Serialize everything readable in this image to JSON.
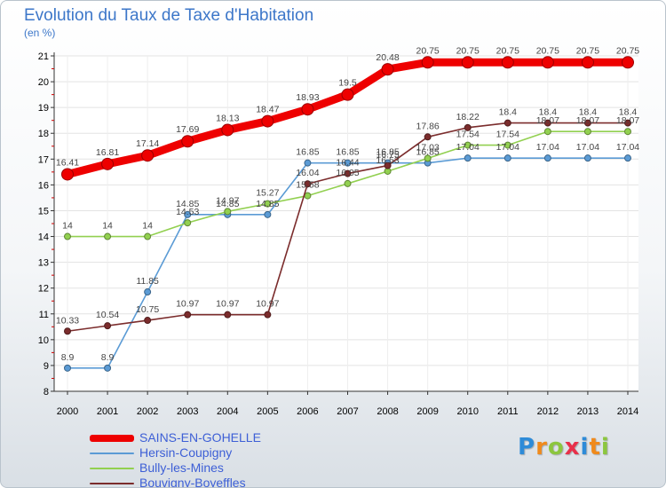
{
  "chart_data": {
    "type": "line",
    "title": "Evolution du Taux de Taxe d'Habitation",
    "unit_label": "(en %)",
    "x": [
      "2000",
      "2001",
      "2002",
      "2003",
      "2004",
      "2005",
      "2006",
      "2007",
      "2008",
      "2009",
      "2010",
      "2011",
      "2012",
      "2013",
      "2014"
    ],
    "ylim": [
      8,
      21
    ],
    "yticks": [
      8,
      9,
      10,
      11,
      12,
      13,
      14,
      15,
      16,
      17,
      18,
      19,
      20,
      21
    ],
    "grid": true,
    "legend_position": "bottom-left",
    "series": [
      {
        "name": "SAINS-EN-GOHELLE",
        "color": "#ee0000",
        "emphasis": true,
        "values": [
          16.41,
          16.81,
          17.14,
          17.69,
          18.13,
          18.47,
          18.93,
          19.5,
          20.48,
          20.75,
          20.75,
          20.75,
          20.75,
          20.75,
          20.75
        ],
        "labels": [
          "16.41",
          "16.81",
          "17.14",
          "17.69",
          "18.13",
          "18.47",
          "18.93",
          "19.5",
          "20.48",
          "20.75",
          "20.75",
          "20.75",
          "20.75",
          "20.75",
          "20.75"
        ]
      },
      {
        "name": "Hersin-Coupigny",
        "color": "#5b9bd5",
        "emphasis": false,
        "values": [
          8.9,
          8.9,
          11.85,
          14.85,
          14.85,
          14.85,
          16.85,
          16.85,
          16.85,
          16.85,
          17.04,
          17.04,
          17.04,
          17.04,
          17.04
        ],
        "labels": [
          "8.9",
          "8.9",
          "11.85",
          "14.85",
          "14.85",
          "14.85",
          "16.85",
          "16.85",
          "16.85",
          "16.85",
          "17.04",
          "17.04",
          "17.04",
          "17.04",
          "17.04"
        ]
      },
      {
        "name": "Bully-les-Mines",
        "color": "#92d050",
        "emphasis": false,
        "values": [
          14,
          14,
          14,
          14.53,
          14.97,
          15.27,
          15.58,
          16.05,
          16.53,
          17.03,
          17.54,
          17.54,
          18.07,
          18.07,
          18.07
        ],
        "labels": [
          "14",
          "14",
          "14",
          "14.53",
          "14.97",
          "15.27",
          "15.58",
          "16.05",
          "16.53",
          "17.03",
          "17.54",
          "17.54",
          "18.07",
          "18.07",
          "18.07"
        ]
      },
      {
        "name": "Bouvigny-Boyeffles",
        "color": "#7b2c2c",
        "emphasis": false,
        "values": [
          10.33,
          10.54,
          10.75,
          10.97,
          10.97,
          10.97,
          16.04,
          16.44,
          16.75,
          17.86,
          18.22,
          18.4,
          18.4,
          18.4,
          18.4
        ],
        "labels": [
          "10.33",
          "10.54",
          "10.75",
          "10.97",
          "10.97",
          "10.97",
          "16.04",
          "16.44",
          "16.75",
          "17.86",
          "18.22",
          "18.4",
          "18.4",
          "18.4",
          "18.4"
        ]
      }
    ]
  },
  "logo": {
    "letters": [
      "P",
      "r",
      "o",
      "x",
      "i",
      "t",
      "i"
    ],
    "colors": [
      "#2e8bd8",
      "#f08a1c",
      "#8cc63f",
      "#e8304a",
      "#2e8bd8",
      "#f08a1c",
      "#8cc63f"
    ]
  }
}
